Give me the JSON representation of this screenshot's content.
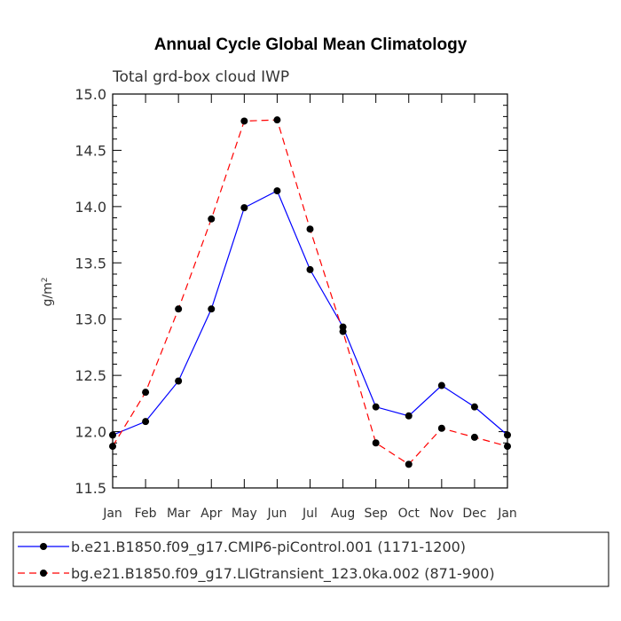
{
  "chart_data": {
    "type": "line",
    "title": "Annual Cycle Global Mean Climatology",
    "subtitle": "Total grd-box cloud IWP",
    "ylabel": "g/m",
    "ylabel_sup": "2",
    "xlabel": "",
    "categories": [
      "Jan",
      "Feb",
      "Mar",
      "Apr",
      "May",
      "Jun",
      "Jul",
      "Aug",
      "Sep",
      "Oct",
      "Nov",
      "Dec",
      "Jan"
    ],
    "ylim": [
      11.5,
      15.0
    ],
    "yticks": [
      "11.5",
      "12.0",
      "12.5",
      "13.0",
      "13.5",
      "14.0",
      "14.5",
      "15.0"
    ],
    "series": [
      {
        "name": "b.e21.B1850.f09_g17.CMIP6-piControl.001 (1171-1200)",
        "color": "#0000ff",
        "dash": "solid",
        "values": [
          11.97,
          12.09,
          12.45,
          13.09,
          13.99,
          14.14,
          13.44,
          12.93,
          12.22,
          12.14,
          12.41,
          12.22,
          11.97
        ]
      },
      {
        "name": "bg.e21.B1850.f09_g17.LIGtransient_123.0ka.002 (871-900)",
        "color": "#ff0000",
        "dash": "dashed",
        "values": [
          11.87,
          12.35,
          13.09,
          13.89,
          14.76,
          14.77,
          13.8,
          12.89,
          11.9,
          11.71,
          12.03,
          11.95,
          11.87
        ]
      }
    ]
  }
}
